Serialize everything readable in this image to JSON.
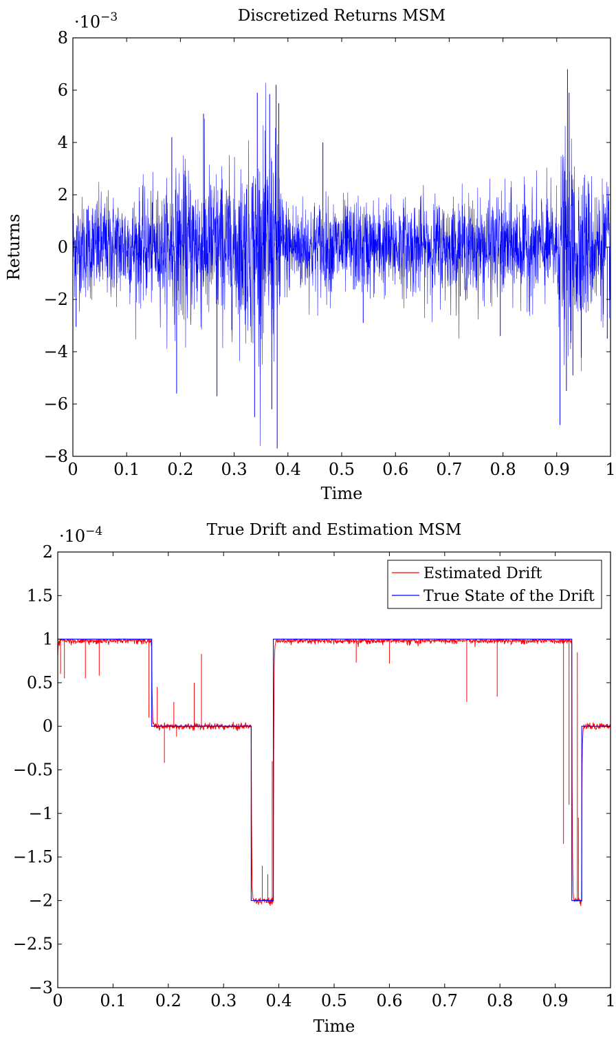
{
  "chart_data": [
    {
      "type": "line",
      "title": "Discretized Returns MSM",
      "xlabel": "Time",
      "ylabel": "Returns",
      "y_multiplier_label": "·10",
      "y_multiplier_exp": "−3",
      "xlim": [
        0,
        1
      ],
      "ylim": [
        -8,
        8
      ],
      "x_ticks": [
        "0",
        "0.1",
        "0.2",
        "0.3",
        "0.4",
        "0.5",
        "0.6",
        "0.7",
        "0.8",
        "0.9",
        "1"
      ],
      "y_ticks": [
        "−8",
        "−6",
        "−4",
        "−2",
        "0",
        "2",
        "4",
        "6",
        "8"
      ],
      "grid": false,
      "series": [
        {
          "color": "#0000ff",
          "description_envelope": [
            {
              "x": 0.0,
              "amp": 2.4
            },
            {
              "x": 0.05,
              "amp": 2.6
            },
            {
              "x": 0.1,
              "amp": 2.6
            },
            {
              "x": 0.15,
              "amp": 2.7
            },
            {
              "x": 0.17,
              "amp": 2.8
            },
            {
              "x": 0.2,
              "amp": 3.9
            },
            {
              "x": 0.25,
              "amp": 3.9
            },
            {
              "x": 0.3,
              "amp": 3.7
            },
            {
              "x": 0.34,
              "amp": 4.8
            },
            {
              "x": 0.36,
              "amp": 5.2
            },
            {
              "x": 0.385,
              "amp": 5.0
            },
            {
              "x": 0.39,
              "amp": 2.4
            },
            {
              "x": 0.5,
              "amp": 2.3
            },
            {
              "x": 0.6,
              "amp": 2.3
            },
            {
              "x": 0.7,
              "amp": 2.4
            },
            {
              "x": 0.8,
              "amp": 2.5
            },
            {
              "x": 0.9,
              "amp": 2.7
            },
            {
              "x": 0.91,
              "amp": 4.8
            },
            {
              "x": 0.93,
              "amp": 4.9
            },
            {
              "x": 0.96,
              "amp": 3.4
            },
            {
              "x": 1.0,
              "amp": 3.0
            }
          ],
          "spikes": [
            {
              "x": 0.006,
              "y": -3.05
            },
            {
              "x": 0.184,
              "y": 4.2
            },
            {
              "x": 0.193,
              "y": -5.6
            },
            {
              "x": 0.243,
              "y": 5.1
            },
            {
              "x": 0.268,
              "y": -5.7
            },
            {
              "x": 0.338,
              "y": -6.5
            },
            {
              "x": 0.343,
              "y": 5.9
            },
            {
              "x": 0.366,
              "y": 5.85
            },
            {
              "x": 0.37,
              "y": -6.2
            },
            {
              "x": 0.378,
              "y": 6.2
            },
            {
              "x": 0.38,
              "y": -7.7
            },
            {
              "x": 0.383,
              "y": 5.5
            },
            {
              "x": 0.465,
              "y": 4.0
            },
            {
              "x": 0.54,
              "y": -2.9
            },
            {
              "x": 0.795,
              "y": -3.4
            },
            {
              "x": 0.906,
              "y": -6.8
            },
            {
              "x": 0.92,
              "y": 6.8
            },
            {
              "x": 0.918,
              "y": -5.5
            },
            {
              "x": 0.923,
              "y": 5.9
            },
            {
              "x": 0.93,
              "y": -4.9
            },
            {
              "x": 0.994,
              "y": -3.5
            }
          ]
        }
      ]
    },
    {
      "type": "line",
      "title": "True Drift and Estimation MSM",
      "xlabel": "Time",
      "ylabel": "",
      "y_multiplier_label": "·10",
      "y_multiplier_exp": "−4",
      "xlim": [
        0,
        1
      ],
      "ylim": [
        -3,
        2
      ],
      "x_ticks": [
        "0",
        "0.1",
        "0.2",
        "0.3",
        "0.4",
        "0.5",
        "0.6",
        "0.7",
        "0.8",
        "0.9",
        "1"
      ],
      "y_ticks": [
        "−3",
        "−2.5",
        "−2",
        "−1.5",
        "−1",
        "−0.5",
        "0",
        "0.5",
        "1",
        "1.5",
        "2"
      ],
      "grid": false,
      "legend": {
        "placement": "top-right",
        "entries": [
          "Estimated Drift",
          "True State of the Drift"
        ]
      },
      "series": [
        {
          "name": "Estimated Drift",
          "color": "#ff0000",
          "dips": [
            {
              "x": 0.0,
              "y": -0.2
            },
            {
              "x": 0.005,
              "y": 0.6
            },
            {
              "x": 0.012,
              "y": 0.55
            },
            {
              "x": 0.05,
              "y": 0.55
            },
            {
              "x": 0.075,
              "y": 0.58
            },
            {
              "x": 0.165,
              "y": 0.1
            },
            {
              "x": 0.18,
              "y": 0.45
            },
            {
              "x": 0.193,
              "y": -0.42
            },
            {
              "x": 0.21,
              "y": 0.28
            },
            {
              "x": 0.215,
              "y": -0.12
            },
            {
              "x": 0.247,
              "y": 0.5
            },
            {
              "x": 0.26,
              "y": 0.83
            },
            {
              "x": 0.35,
              "y": -1.4
            },
            {
              "x": 0.37,
              "y": -1.6
            },
            {
              "x": 0.38,
              "y": -1.7
            },
            {
              "x": 0.388,
              "y": -0.4
            },
            {
              "x": 0.54,
              "y": 0.73
            },
            {
              "x": 0.6,
              "y": 0.72
            },
            {
              "x": 0.74,
              "y": 0.28
            },
            {
              "x": 0.795,
              "y": 0.34
            },
            {
              "x": 0.925,
              "y": -0.9
            },
            {
              "x": 0.915,
              "y": -1.35
            },
            {
              "x": 0.94,
              "y": 0.85
            },
            {
              "x": 0.942,
              "y": -1.05
            },
            {
              "x": 1.0,
              "y": 0.26
            }
          ]
        },
        {
          "name": "True State of the Drift",
          "color": "#0000ff",
          "steps": [
            {
              "x0": 0.0,
              "x1": 0.17,
              "y": 1
            },
            {
              "x0": 0.17,
              "x1": 0.35,
              "y": 0
            },
            {
              "x0": 0.35,
              "x1": 0.39,
              "y": -2
            },
            {
              "x0": 0.39,
              "x1": 0.93,
              "y": 1
            },
            {
              "x0": 0.93,
              "x1": 0.948,
              "y": -2
            },
            {
              "x0": 0.948,
              "x1": 1.0,
              "y": 0
            }
          ]
        }
      ]
    }
  ]
}
